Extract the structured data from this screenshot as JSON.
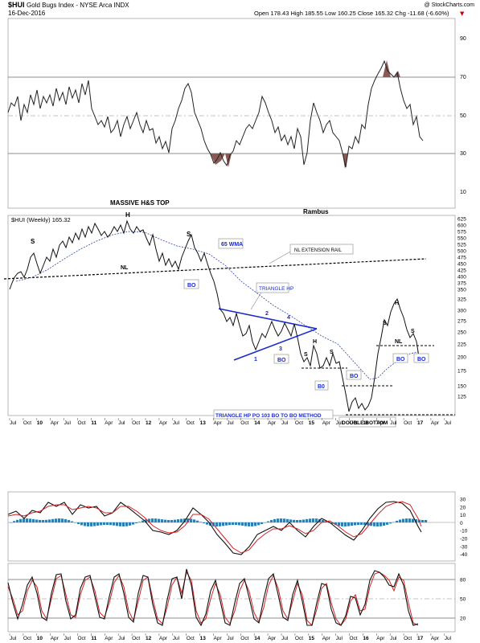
{
  "header": {
    "symbol": "$HUI",
    "name": "Gold Bugs Index - NYSE Arca INDX",
    "date": "16-Dec-2016",
    "watermark": "@ StockCharts.com",
    "ohlc": "Open 178.43   High 185.55   Low 160.25   Close 165.32   Chg -11.68 (-6.60%)"
  },
  "rsi_panel": {
    "ticks": [
      "90",
      "70",
      "50",
      "30",
      "10"
    ],
    "fill_color": "#8b5a55"
  },
  "price_panel": {
    "title": "MASSIVE H&S TOP",
    "author": "Rambus",
    "legend": "$HUI (Weekly) 165.32",
    "ticks": [
      "625",
      "600",
      "575",
      "550",
      "525",
      "500",
      "475",
      "450",
      "425",
      "400",
      "375",
      "350",
      "325",
      "300",
      "275",
      "250",
      "225",
      "200",
      "175",
      "150",
      "125"
    ],
    "annotations": {
      "wma": "65 WMA",
      "nl_rail": "NL EXTENSION RAIL",
      "triangle": "TRIANGLE HP",
      "po": "TRIANGLE HP PO 103 BO TO BO METHOD",
      "double_bottom": "DOUBLE BOTTOM",
      "bo": "BO",
      "bo_zero": "B0",
      "nl": "NL",
      "h": "H",
      "s": "S",
      "n1": "1",
      "n2": "2",
      "n3": "3",
      "n4": "4"
    }
  },
  "time_axis": [
    "Jul",
    "Oct",
    "10",
    "Apr",
    "Jul",
    "Oct",
    "11",
    "Apr",
    "Jul",
    "Oct",
    "12",
    "Apr",
    "Jul",
    "Oct",
    "13",
    "Apr",
    "Jul",
    "Oct",
    "14",
    "Apr",
    "Jul",
    "Oct",
    "15",
    "Apr",
    "Jul",
    "Oct",
    "16",
    "Apr",
    "Jul",
    "Oct",
    "17",
    "Apr",
    "Jul"
  ],
  "macd_panel": {
    "ticks": [
      "30",
      "20",
      "10",
      "0",
      "-10",
      "-20",
      "-30",
      "-40"
    ],
    "hist_color": "#2e7fb0"
  },
  "stoch_panel": {
    "ticks": [
      "80",
      "50",
      "20"
    ]
  },
  "chart_data": {
    "type": "line",
    "series": [
      {
        "name": "$HUI (Weekly)",
        "approx_weekly_close_by_quarter": [
          [
            "2009-07",
            330
          ],
          [
            "2009-10",
            420
          ],
          [
            "2010-01",
            400
          ],
          [
            "2010-04",
            450
          ],
          [
            "2010-07",
            470
          ],
          [
            "2010-10",
            560
          ],
          [
            "2011-01",
            540
          ],
          [
            "2011-04",
            570
          ],
          [
            "2011-07",
            560
          ],
          [
            "2011-10",
            580
          ],
          [
            "2012-01",
            530
          ],
          [
            "2012-04",
            440
          ],
          [
            "2012-07",
            450
          ],
          [
            "2012-10",
            510
          ],
          [
            "2013-01",
            440
          ],
          [
            "2013-04",
            300
          ],
          [
            "2013-07",
            230
          ],
          [
            "2013-10",
            240
          ],
          [
            "2014-01",
            200
          ],
          [
            "2014-04",
            240
          ],
          [
            "2014-07",
            250
          ],
          [
            "2014-10",
            180
          ],
          [
            "2015-01",
            200
          ],
          [
            "2015-04",
            180
          ],
          [
            "2015-07",
            130
          ],
          [
            "2015-10",
            120
          ],
          [
            "2016-01",
            110
          ],
          [
            "2016-04",
            200
          ],
          [
            "2016-07",
            280
          ],
          [
            "2016-10",
            200
          ],
          [
            "2016-12",
            165
          ]
        ]
      }
    ],
    "ylim": [
      100,
      625
    ],
    "last_value": 165.32
  }
}
